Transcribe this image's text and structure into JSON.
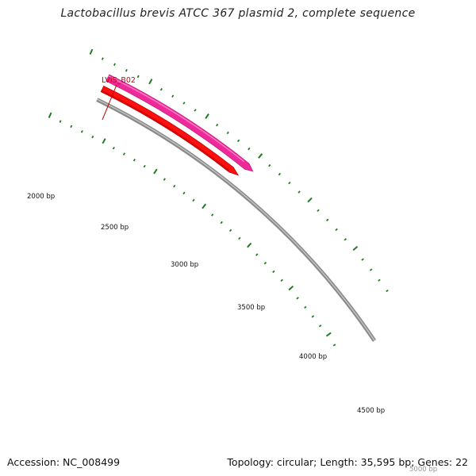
{
  "title": "Lactobacillus brevis ATCC 367 plasmid 2, complete sequence",
  "accession_text": "Accession: NC_008499",
  "summary_text": "Topology: circular; Length: 35,595 bp; Genes: 22",
  "gene_label": "LVIS_B02",
  "tick_labels": [
    "2000 bp",
    "2500 bp",
    "3000 bp",
    "3500 bp",
    "4000 bp",
    "4500 bp",
    "5000 bp"
  ],
  "colors": {
    "backbone": "#8a8a8a",
    "forward_feature": "#ee2a9a",
    "reverse_feature": "#ff1010",
    "ticks": "#1e7d1e",
    "gene_label": "#cc0000"
  }
}
